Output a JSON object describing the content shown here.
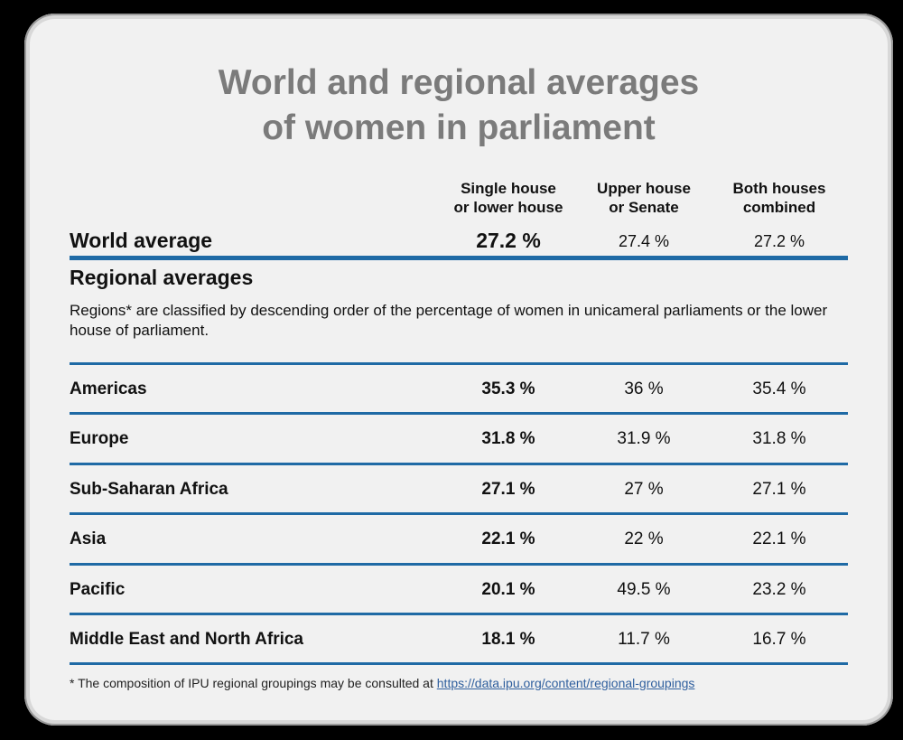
{
  "title": {
    "line1": "World and regional averages",
    "line2": "of women in parliament"
  },
  "columns": [
    {
      "line1": "Single house",
      "line2": "or lower house"
    },
    {
      "line1": "Upper house",
      "line2": "or Senate"
    },
    {
      "line1": "Both houses",
      "line2": "combined"
    }
  ],
  "world": {
    "label": "World average",
    "values": [
      "27.2 %",
      "27.4 %",
      "27.2 %"
    ]
  },
  "regional": {
    "title": "Regional averages",
    "note": "Regions* are classified by descending order of the percentage of women in unicameral parliaments or the lower house of parliament.",
    "rows": [
      {
        "label": "Americas",
        "values": [
          "35.3 %",
          "36 %",
          "35.4 %"
        ]
      },
      {
        "label": "Europe",
        "values": [
          "31.8 %",
          "31.9 %",
          "31.8 %"
        ]
      },
      {
        "label": "Sub-Saharan Africa",
        "values": [
          "27.1 %",
          "27 %",
          "27.1 %"
        ]
      },
      {
        "label": "Asia",
        "values": [
          "22.1 %",
          "22 %",
          "22.1 %"
        ]
      },
      {
        "label": "Pacific",
        "values": [
          "20.1 %",
          "49.5 %",
          "23.2 %"
        ]
      },
      {
        "label": "Middle East and North Africa",
        "values": [
          "18.1 %",
          "11.7 %",
          "16.7 %"
        ]
      }
    ]
  },
  "footnote": {
    "text": "* The composition of IPU regional groupings may be consulted at ",
    "link": "https://data.ipu.org/content/regional-groupings"
  },
  "colors": {
    "rule": "#1f6aa5",
    "title": "#7b7b7b",
    "background": "#f1f1f1",
    "link": "#2f5f9e"
  },
  "chart_data": {
    "type": "table",
    "title": "World and regional averages of women in parliament",
    "columns": [
      "Single house or lower house",
      "Upper house or Senate",
      "Both houses combined"
    ],
    "rows": [
      {
        "name": "World average",
        "values": [
          27.2,
          27.4,
          27.2
        ]
      },
      {
        "name": "Americas",
        "values": [
          35.3,
          36,
          35.4
        ]
      },
      {
        "name": "Europe",
        "values": [
          31.8,
          31.9,
          31.8
        ]
      },
      {
        "name": "Sub-Saharan Africa",
        "values": [
          27.1,
          27,
          27.1
        ]
      },
      {
        "name": "Asia",
        "values": [
          22.1,
          22,
          22.1
        ]
      },
      {
        "name": "Pacific",
        "values": [
          20.1,
          49.5,
          23.2
        ]
      },
      {
        "name": "Middle East and North Africa",
        "values": [
          18.1,
          11.7,
          16.7
        ]
      }
    ],
    "unit": "%"
  }
}
